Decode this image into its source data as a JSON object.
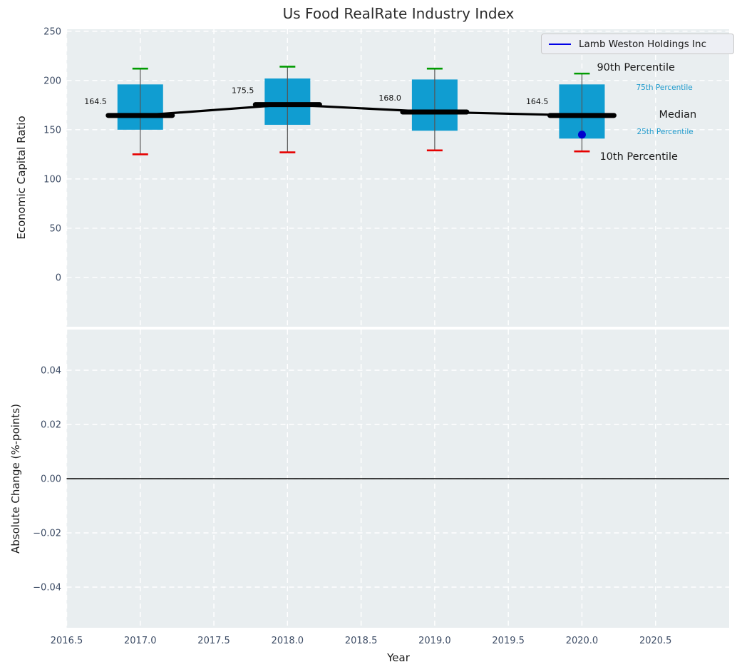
{
  "figure": {
    "background": "#ffffff",
    "axes_background": "#e9eef0",
    "grid_color": "#ffffff",
    "tick_color": "#3e4d66"
  },
  "chart_data": [
    {
      "type": "boxplot",
      "title": "Us Food RealRate Industry Index",
      "xlabel": "Year",
      "ylabel": "Economic Capital Ratio",
      "xlim": [
        2016.5,
        2021.0
      ],
      "ylim": [
        -50,
        252
      ],
      "grid": "white-dashed",
      "legend_position": "upper right",
      "xtick_values": [
        2016.5,
        2017.0,
        2017.5,
        2018.0,
        2018.5,
        2019.0,
        2019.5,
        2020.0,
        2020.5
      ],
      "xtick_labels": [
        "2016.5",
        "2017.0",
        "2017.5",
        "2018.0",
        "2018.5",
        "2019.0",
        "2019.5",
        "2020.0",
        "2020.5"
      ],
      "ytick_values": [
        0,
        50,
        100,
        150,
        200,
        250
      ],
      "ytick_labels": [
        "0",
        "50",
        "100",
        "150",
        "200",
        "250"
      ],
      "legend_entries": [
        {
          "label": "Lamb Weston Holdings Inc",
          "color": "#0000e6"
        }
      ],
      "categories": [
        2017,
        2018,
        2019,
        2020
      ],
      "boxes": [
        {
          "year": 2017,
          "p10": 125,
          "p25": 150,
          "median": 164.5,
          "p75": 196,
          "p90": 212,
          "median_label": "164.5"
        },
        {
          "year": 2018,
          "p10": 127,
          "p25": 155,
          "median": 175.5,
          "p75": 202,
          "p90": 214,
          "median_label": "175.5"
        },
        {
          "year": 2019,
          "p10": 129,
          "p25": 149,
          "median": 168.0,
          "p75": 201,
          "p90": 212,
          "median_label": "168.0"
        },
        {
          "year": 2020,
          "p10": 128,
          "p25": 141,
          "median": 164.5,
          "p75": 196,
          "p90": 207,
          "median_label": "164.5"
        }
      ],
      "company_point": {
        "name": "Lamb Weston Holdings Inc",
        "year": 2020,
        "value": 145,
        "color": "#0000cd"
      },
      "percentile_labels": [
        {
          "text": "90th Percentile",
          "size": "large",
          "color": "#1a1a1a",
          "ref": "p90"
        },
        {
          "text": "75th Percentile",
          "size": "small",
          "color": "#1f9acc",
          "ref": "p75"
        },
        {
          "text": "Median",
          "size": "large",
          "color": "#1a1a1a",
          "ref": "median"
        },
        {
          "text": "25th Percentile",
          "size": "small",
          "color": "#1f9acc",
          "ref": "p25"
        },
        {
          "text": "10th Percentile",
          "size": "large",
          "color": "#1a1a1a",
          "ref": "p10"
        }
      ],
      "box_color": "#109dd1",
      "whisker_color": "#555555",
      "cap_colors": {
        "p90": "#009b00",
        "p10": "#e60000"
      },
      "median_line_color": "#000000",
      "annotation_color": "#111111"
    },
    {
      "type": "line",
      "xlabel": "Year",
      "ylabel": "Absolute Change (%-points)",
      "xlim": [
        2016.5,
        2021.0
      ],
      "ylim": [
        -0.055,
        0.055
      ],
      "grid": "white-dashed",
      "xtick_values": [
        2016.5,
        2017.0,
        2017.5,
        2018.0,
        2018.5,
        2019.0,
        2019.5,
        2020.0,
        2020.5
      ],
      "xtick_labels": [
        "2016.5",
        "2017.0",
        "2017.5",
        "2018.0",
        "2018.5",
        "2019.0",
        "2019.5",
        "2020.0",
        "2020.5"
      ],
      "ytick_values": [
        0.04,
        0.02,
        0.0,
        -0.02,
        -0.04
      ],
      "ytick_labels": [
        "0.04",
        "0.02",
        "0.00",
        "−0.02",
        "−0.04"
      ],
      "zero_line": 0.0,
      "zero_line_color": "#000000",
      "series": []
    }
  ]
}
